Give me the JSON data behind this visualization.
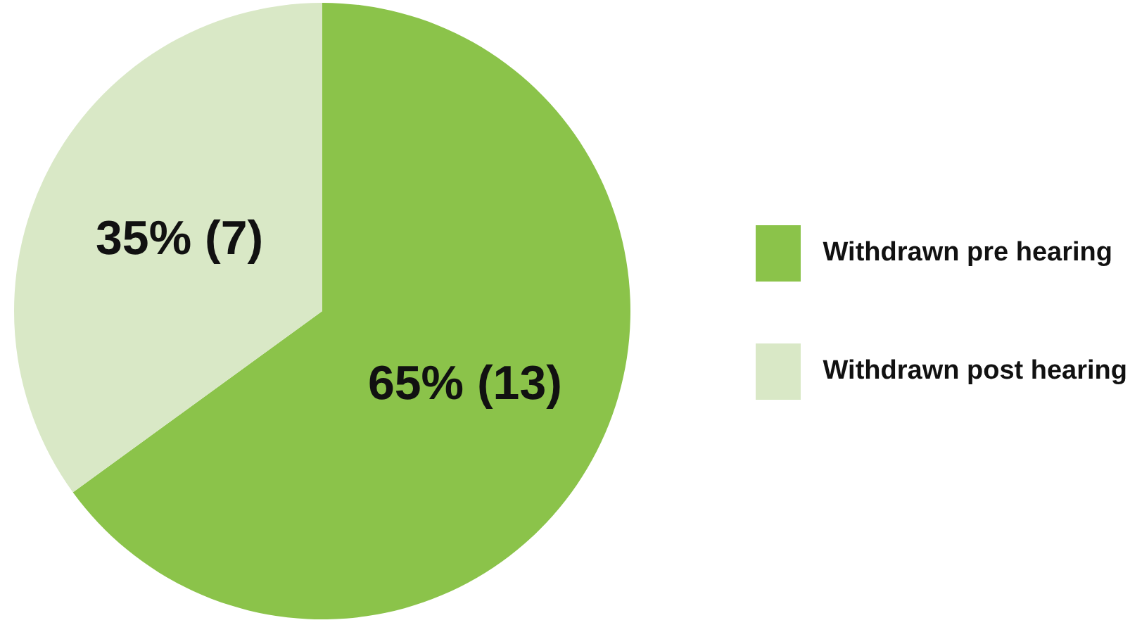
{
  "chart_data": {
    "type": "pie",
    "categories": [
      "Withdrawn pre hearing",
      "Withdrawn post hearing"
    ],
    "values": [
      13,
      7
    ],
    "colors": [
      "#8bc34a",
      "#d9e8c6"
    ],
    "value_labels": [
      "65% (13)",
      "35% (7)"
    ],
    "legend": "right"
  }
}
